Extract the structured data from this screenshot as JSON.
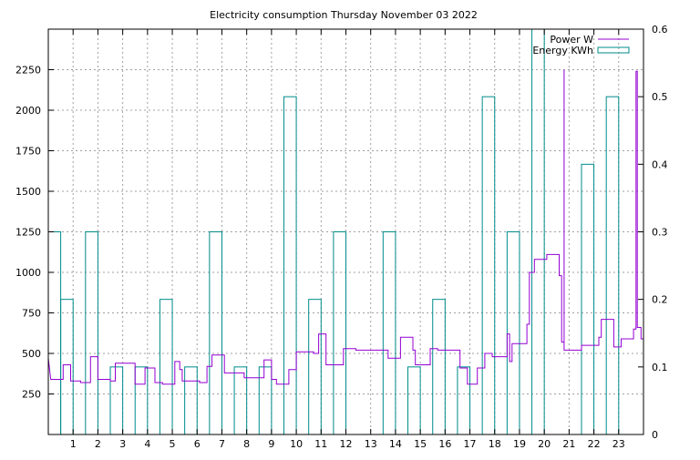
{
  "chart_data": {
    "type": "line",
    "title": "Electricity consumption Thursday November 03 2022",
    "xlabel": "",
    "ylabel": "",
    "xlim": [
      0,
      24
    ],
    "ylim": [
      0,
      2500
    ],
    "y2lim": [
      0,
      0.6
    ],
    "x_ticks": [
      1,
      2,
      3,
      4,
      5,
      6,
      7,
      8,
      9,
      10,
      11,
      12,
      13,
      14,
      15,
      16,
      17,
      18,
      19,
      20,
      21,
      22,
      23
    ],
    "y_ticks": [
      250,
      500,
      750,
      1000,
      1250,
      1500,
      1750,
      2000,
      2250
    ],
    "y2_ticks": [
      0,
      0.1,
      0.2,
      0.3,
      0.4,
      0.5,
      0.6
    ],
    "grid": true,
    "legend_position": "top-right",
    "series": [
      {
        "name": "Power W",
        "color": "#9400d3",
        "style": "steps",
        "axis": "y1",
        "points": [
          [
            0.0,
            470
          ],
          [
            0.1,
            340
          ],
          [
            0.6,
            340
          ],
          [
            0.6,
            430
          ],
          [
            0.9,
            430
          ],
          [
            0.9,
            330
          ],
          [
            1.3,
            330
          ],
          [
            1.3,
            320
          ],
          [
            1.7,
            320
          ],
          [
            1.7,
            480
          ],
          [
            2.0,
            480
          ],
          [
            2.0,
            340
          ],
          [
            2.5,
            340
          ],
          [
            2.5,
            330
          ],
          [
            2.7,
            330
          ],
          [
            2.7,
            440
          ],
          [
            3.5,
            440
          ],
          [
            3.5,
            310
          ],
          [
            3.9,
            310
          ],
          [
            3.9,
            410
          ],
          [
            4.3,
            410
          ],
          [
            4.3,
            320
          ],
          [
            4.6,
            320
          ],
          [
            4.6,
            310
          ],
          [
            5.1,
            310
          ],
          [
            5.1,
            450
          ],
          [
            5.3,
            450
          ],
          [
            5.3,
            400
          ],
          [
            5.4,
            400
          ],
          [
            5.4,
            330
          ],
          [
            6.1,
            330
          ],
          [
            6.1,
            320
          ],
          [
            6.4,
            320
          ],
          [
            6.4,
            420
          ],
          [
            6.6,
            420
          ],
          [
            6.6,
            490
          ],
          [
            7.1,
            490
          ],
          [
            7.1,
            380
          ],
          [
            7.9,
            380
          ],
          [
            7.9,
            350
          ],
          [
            8.7,
            350
          ],
          [
            8.7,
            460
          ],
          [
            9.0,
            460
          ],
          [
            9.0,
            340
          ],
          [
            9.2,
            340
          ],
          [
            9.2,
            310
          ],
          [
            9.7,
            310
          ],
          [
            9.7,
            400
          ],
          [
            10.0,
            400
          ],
          [
            10.0,
            510
          ],
          [
            10.7,
            510
          ],
          [
            10.7,
            500
          ],
          [
            10.9,
            500
          ],
          [
            10.9,
            620
          ],
          [
            11.2,
            620
          ],
          [
            11.2,
            430
          ],
          [
            11.9,
            430
          ],
          [
            11.9,
            530
          ],
          [
            12.4,
            530
          ],
          [
            12.4,
            520
          ],
          [
            13.7,
            520
          ],
          [
            13.7,
            470
          ],
          [
            14.2,
            470
          ],
          [
            14.2,
            600
          ],
          [
            14.7,
            600
          ],
          [
            14.7,
            520
          ],
          [
            14.8,
            520
          ],
          [
            14.8,
            430
          ],
          [
            15.4,
            430
          ],
          [
            15.4,
            530
          ],
          [
            15.7,
            530
          ],
          [
            15.7,
            520
          ],
          [
            16.6,
            520
          ],
          [
            16.6,
            410
          ],
          [
            16.9,
            410
          ],
          [
            16.9,
            310
          ],
          [
            17.3,
            310
          ],
          [
            17.3,
            410
          ],
          [
            17.6,
            410
          ],
          [
            17.6,
            500
          ],
          [
            17.9,
            500
          ],
          [
            17.9,
            480
          ],
          [
            18.5,
            480
          ],
          [
            18.5,
            620
          ],
          [
            18.6,
            620
          ],
          [
            18.6,
            450
          ],
          [
            18.7,
            450
          ],
          [
            18.7,
            560
          ],
          [
            19.3,
            560
          ],
          [
            19.3,
            680
          ],
          [
            19.4,
            680
          ],
          [
            19.4,
            1000
          ],
          [
            19.6,
            1000
          ],
          [
            19.6,
            1080
          ],
          [
            20.1,
            1080
          ],
          [
            20.1,
            1110
          ],
          [
            20.6,
            1110
          ],
          [
            20.6,
            980
          ],
          [
            20.7,
            980
          ],
          [
            20.7,
            570
          ],
          [
            20.8,
            570
          ],
          [
            20.8,
            2250
          ],
          [
            20.8,
            520
          ],
          [
            21.5,
            520
          ],
          [
            21.5,
            550
          ],
          [
            22.2,
            550
          ],
          [
            22.2,
            600
          ],
          [
            22.3,
            600
          ],
          [
            22.3,
            710
          ],
          [
            22.8,
            710
          ],
          [
            22.8,
            540
          ],
          [
            23.1,
            540
          ],
          [
            23.1,
            590
          ],
          [
            23.6,
            590
          ],
          [
            23.6,
            650
          ],
          [
            23.7,
            650
          ],
          [
            23.7,
            2240
          ],
          [
            23.75,
            2240
          ],
          [
            23.75,
            660
          ],
          [
            23.9,
            660
          ],
          [
            23.9,
            590
          ],
          [
            24.0,
            590
          ]
        ]
      },
      {
        "name": "Energy KWh",
        "color": "#008b8b",
        "style": "boxes",
        "axis": "y2",
        "boxes": [
          [
            0.0,
            0.3
          ],
          [
            0.5,
            0.2
          ],
          [
            1.5,
            0.3
          ],
          [
            2.5,
            0.1
          ],
          [
            3.5,
            0.1
          ],
          [
            4.5,
            0.2
          ],
          [
            5.5,
            0.1
          ],
          [
            6.5,
            0.3
          ],
          [
            7.5,
            0.1
          ],
          [
            8.5,
            0.1
          ],
          [
            9.5,
            0.5
          ],
          [
            10.5,
            0.2
          ],
          [
            11.5,
            0.3
          ],
          [
            13.5,
            0.3
          ],
          [
            14.5,
            0.1
          ],
          [
            15.5,
            0.2
          ],
          [
            16.5,
            0.1
          ],
          [
            17.5,
            0.5
          ],
          [
            18.5,
            0.3
          ],
          [
            19.5,
            0.6
          ],
          [
            21.5,
            0.4
          ],
          [
            22.5,
            0.5
          ]
        ]
      }
    ]
  }
}
